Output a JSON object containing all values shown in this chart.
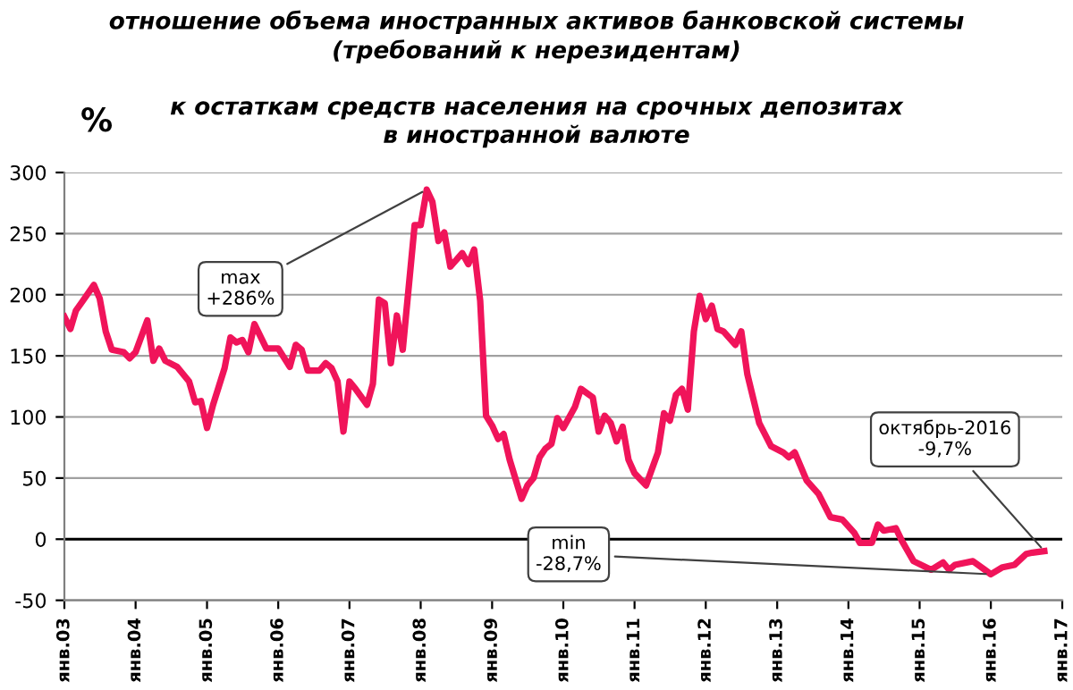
{
  "chart_data": {
    "type": "line",
    "title": "отношение объема иностранных активов банковской системы\n(требований к нерезидентам)",
    "subtitle": "к остаткам средств населения на срочных депозитах\nв иностранной валюте",
    "ylabel": "%",
    "x": [
      "2003-01",
      "2003-02",
      "2003-03",
      "2003-04",
      "2003-06",
      "2003-07",
      "2003-08",
      "2003-09",
      "2003-11",
      "2003-12",
      "2004-01",
      "2004-03",
      "2004-04",
      "2004-05",
      "2004-06",
      "2004-08",
      "2004-10",
      "2004-11",
      "2004-12",
      "2005-01",
      "2005-02",
      "2005-04",
      "2005-05",
      "2005-06",
      "2005-07",
      "2005-08",
      "2005-09",
      "2005-11",
      "2006-01",
      "2006-03",
      "2006-04",
      "2006-05",
      "2006-06",
      "2006-08",
      "2006-09",
      "2006-10",
      "2006-11",
      "2006-12",
      "2007-01",
      "2007-02",
      "2007-04",
      "2007-05",
      "2007-06",
      "2007-07",
      "2007-08",
      "2007-09",
      "2007-10",
      "2007-12",
      "2008-01",
      "2008-02",
      "2008-03",
      "2008-04",
      "2008-05",
      "2008-06",
      "2008-08",
      "2008-09",
      "2008-10",
      "2008-11",
      "2008-12",
      "2009-01",
      "2009-02",
      "2009-03",
      "2009-04",
      "2009-06",
      "2009-07",
      "2009-08",
      "2009-09",
      "2009-10",
      "2009-11",
      "2009-12",
      "2010-01",
      "2010-03",
      "2010-04",
      "2010-06",
      "2010-07",
      "2010-08",
      "2010-09",
      "2010-10",
      "2010-11",
      "2010-12",
      "2011-01",
      "2011-03",
      "2011-05",
      "2011-06",
      "2011-07",
      "2011-08",
      "2011-09",
      "2011-10",
      "2011-11",
      "2011-12",
      "2012-01",
      "2012-02",
      "2012-03",
      "2012-04",
      "2012-06",
      "2012-07",
      "2012-08",
      "2012-10",
      "2012-12",
      "2013-02",
      "2013-03",
      "2013-04",
      "2013-06",
      "2013-08",
      "2013-10",
      "2013-12",
      "2014-02",
      "2014-03",
      "2014-05",
      "2014-06",
      "2014-07",
      "2014-09",
      "2014-10",
      "2014-12",
      "2015-03",
      "2015-05",
      "2015-06",
      "2015-07",
      "2015-10",
      "2015-12",
      "2016-01",
      "2016-03",
      "2016-05",
      "2016-07",
      "2016-08",
      "2016-10"
    ],
    "series": [
      {
        "color": "#f0145a",
        "values": [
          182,
          172,
          187,
          194,
          208,
          197,
          170,
          155,
          153,
          148,
          153,
          179,
          146,
          156,
          146,
          141,
          129,
          112,
          113,
          91,
          110,
          140,
          165,
          161,
          163,
          153,
          176,
          156,
          156,
          141,
          159,
          155,
          138,
          138,
          144,
          140,
          129,
          88,
          129,
          123,
          110,
          127,
          196,
          193,
          144,
          183,
          155,
          257,
          257,
          286,
          276,
          244,
          251,
          223,
          234,
          225,
          237,
          195,
          101,
          93,
          82,
          86,
          65,
          33,
          44,
          50,
          67,
          74,
          78,
          99,
          91,
          108,
          123,
          116,
          88,
          101,
          95,
          80,
          92,
          65,
          54,
          44,
          71,
          103,
          97,
          118,
          123,
          106,
          170,
          199,
          180,
          191,
          172,
          170,
          159,
          170,
          135,
          95,
          76,
          71,
          67,
          71,
          48,
          37,
          18,
          16,
          5,
          -3,
          -3,
          12,
          7,
          9,
          -1,
          -18,
          -25,
          -19,
          -25,
          -21,
          -18,
          -25,
          -28.7,
          -23,
          -21,
          -12,
          -11,
          -9.7
        ]
      }
    ],
    "xlim": [
      "2003-01",
      "2017-01"
    ],
    "xticks": [
      {
        "value": "2003-01",
        "label": "янв.03"
      },
      {
        "value": "2004-01",
        "label": "янв.04"
      },
      {
        "value": "2005-01",
        "label": "янв.05"
      },
      {
        "value": "2006-01",
        "label": "янв.06"
      },
      {
        "value": "2007-01",
        "label": "янв.07"
      },
      {
        "value": "2008-01",
        "label": "янв.08"
      },
      {
        "value": "2009-01",
        "label": "янв.09"
      },
      {
        "value": "2010-01",
        "label": "янв.10"
      },
      {
        "value": "2011-01",
        "label": "янв.11"
      },
      {
        "value": "2012-01",
        "label": "янв.12"
      },
      {
        "value": "2013-01",
        "label": "янв.13"
      },
      {
        "value": "2014-01",
        "label": "янв.14"
      },
      {
        "value": "2015-01",
        "label": "янв.15"
      },
      {
        "value": "2016-01",
        "label": "янв.16"
      },
      {
        "value": "2017-01",
        "label": "янв.17"
      }
    ],
    "ylim": [
      -50,
      300
    ],
    "yticks": [
      -50,
      0,
      50,
      100,
      150,
      200,
      250,
      300
    ],
    "grid": "y",
    "ref_lines": [
      {
        "axis": "y",
        "value": 0,
        "color": "#000000"
      }
    ],
    "annotations": [
      {
        "text": "max\n+286%",
        "x": "2008-02",
        "y": 286
      },
      {
        "text": "min\n-28,7%",
        "x": "2016-01",
        "y": -28.7
      },
      {
        "text": "октябрь-2016\n-9,7%",
        "x": "2016-10",
        "y": -9.7
      }
    ]
  }
}
